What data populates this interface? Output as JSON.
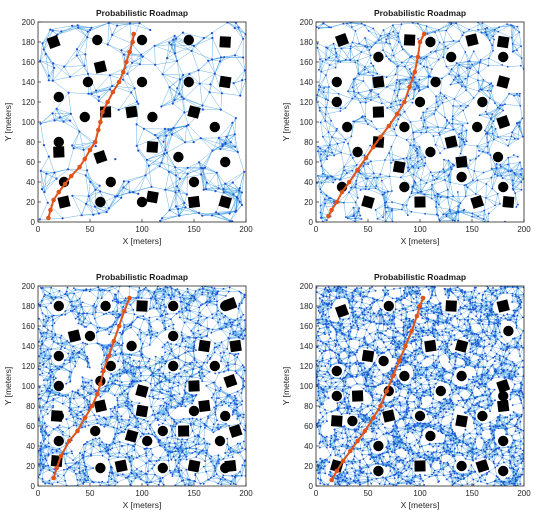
{
  "colors": {
    "background": "#ffffff",
    "free_space": "#ffffff",
    "edge": "#3d9be0",
    "node": "#1f4fd1",
    "path": "#e0541c",
    "obstacle": "#000000",
    "axis": "#262626"
  },
  "chart_data": [
    {
      "type": "scatter",
      "title": "Probabilistic Roadmap",
      "xlabel": "X [meters]",
      "ylabel": "Y [meters]",
      "xlim": [
        0,
        200
      ],
      "ylim": [
        0,
        200
      ],
      "xticks": [
        0,
        50,
        100,
        150,
        200
      ],
      "yticks": [
        0,
        20,
        40,
        60,
        80,
        100,
        120,
        140,
        160,
        180,
        200
      ],
      "grid": false,
      "legend": "none",
      "node_count": 260,
      "path": [
        [
          10,
          4
        ],
        [
          12,
          12
        ],
        [
          15,
          22
        ],
        [
          20,
          30
        ],
        [
          26,
          38
        ],
        [
          32,
          46
        ],
        [
          40,
          55
        ],
        [
          45,
          63
        ],
        [
          50,
          72
        ],
        [
          55,
          80
        ],
        [
          58,
          92
        ],
        [
          60,
          100
        ],
        [
          62,
          110
        ],
        [
          67,
          120
        ],
        [
          72,
          130
        ],
        [
          78,
          140
        ],
        [
          82,
          150
        ],
        [
          85,
          160
        ],
        [
          88,
          170
        ],
        [
          91,
          180
        ],
        [
          92,
          188
        ]
      ],
      "circles": [
        [
          57,
          182
        ],
        [
          100,
          182
        ],
        [
          145,
          182
        ],
        [
          20,
          125
        ],
        [
          48,
          140
        ],
        [
          100,
          140
        ],
        [
          145,
          140
        ],
        [
          45,
          105
        ],
        [
          110,
          105
        ],
        [
          20,
          80
        ],
        [
          170,
          95
        ],
        [
          135,
          65
        ],
        [
          180,
          60
        ],
        [
          25,
          40
        ],
        [
          70,
          40
        ],
        [
          60,
          20
        ],
        [
          100,
          20
        ],
        [
          150,
          40
        ]
      ],
      "squares": [
        [
          15,
          180
        ],
        [
          180,
          180
        ],
        [
          60,
          155
        ],
        [
          180,
          140
        ],
        [
          90,
          110
        ],
        [
          150,
          110
        ],
        [
          20,
          70
        ],
        [
          60,
          65
        ],
        [
          110,
          75
        ],
        [
          25,
          20
        ],
        [
          110,
          25
        ],
        [
          150,
          20
        ],
        [
          180,
          20
        ],
        [
          65,
          110
        ]
      ]
    },
    {
      "type": "scatter",
      "title": "Probabilistic Roadmap",
      "xlabel": "X [meters]",
      "ylabel": "Y [meters]",
      "xlim": [
        0,
        200
      ],
      "ylim": [
        0,
        200
      ],
      "xticks": [
        0,
        50,
        100,
        150,
        200
      ],
      "yticks": [
        0,
        20,
        40,
        60,
        80,
        100,
        120,
        140,
        160,
        180,
        200
      ],
      "grid": false,
      "legend": "none",
      "node_count": 700,
      "path": [
        [
          12,
          6
        ],
        [
          15,
          12
        ],
        [
          20,
          20
        ],
        [
          25,
          30
        ],
        [
          32,
          40
        ],
        [
          40,
          52
        ],
        [
          48,
          64
        ],
        [
          55,
          75
        ],
        [
          62,
          85
        ],
        [
          70,
          96
        ],
        [
          78,
          108
        ],
        [
          85,
          120
        ],
        [
          90,
          135
        ],
        [
          95,
          150
        ],
        [
          98,
          165
        ],
        [
          100,
          180
        ],
        [
          104,
          188
        ]
      ],
      "circles": [
        [
          110,
          180
        ],
        [
          60,
          165
        ],
        [
          130,
          165
        ],
        [
          180,
          165
        ],
        [
          20,
          140
        ],
        [
          115,
          140
        ],
        [
          20,
          120
        ],
        [
          100,
          120
        ],
        [
          160,
          120
        ],
        [
          30,
          95
        ],
        [
          85,
          95
        ],
        [
          155,
          95
        ],
        [
          40,
          70
        ],
        [
          110,
          70
        ],
        [
          175,
          65
        ],
        [
          25,
          35
        ],
        [
          85,
          35
        ],
        [
          140,
          45
        ],
        [
          180,
          35
        ]
      ],
      "squares": [
        [
          25,
          182
        ],
        [
          90,
          182
        ],
        [
          150,
          182
        ],
        [
          180,
          180
        ],
        [
          60,
          140
        ],
        [
          180,
          140
        ],
        [
          60,
          110
        ],
        [
          180,
          100
        ],
        [
          60,
          80
        ],
        [
          130,
          80
        ],
        [
          80,
          55
        ],
        [
          140,
          60
        ],
        [
          50,
          20
        ],
        [
          100,
          20
        ],
        [
          155,
          20
        ],
        [
          185,
          20
        ]
      ]
    },
    {
      "type": "scatter",
      "title": "Probabilistic Roadmap",
      "xlabel": "X [meters]",
      "ylabel": "Y [meters]",
      "xlim": [
        0,
        200
      ],
      "ylim": [
        0,
        200
      ],
      "xticks": [
        0,
        50,
        100,
        150,
        200
      ],
      "yticks": [
        0,
        20,
        40,
        60,
        80,
        100,
        120,
        140,
        160,
        180,
        200
      ],
      "grid": false,
      "legend": "none",
      "node_count": 1500,
      "path": [
        [
          15,
          8
        ],
        [
          18,
          18
        ],
        [
          22,
          30
        ],
        [
          30,
          45
        ],
        [
          38,
          55
        ],
        [
          45,
          68
        ],
        [
          52,
          80
        ],
        [
          57,
          92
        ],
        [
          60,
          102
        ],
        [
          63,
          115
        ],
        [
          68,
          130
        ],
        [
          73,
          145
        ],
        [
          78,
          160
        ],
        [
          83,
          175
        ],
        [
          88,
          188
        ]
      ],
      "circles": [
        [
          20,
          180
        ],
        [
          65,
          180
        ],
        [
          130,
          180
        ],
        [
          180,
          180
        ],
        [
          50,
          150
        ],
        [
          130,
          150
        ],
        [
          90,
          140
        ],
        [
          20,
          130
        ],
        [
          70,
          120
        ],
        [
          130,
          120
        ],
        [
          170,
          120
        ],
        [
          60,
          105
        ],
        [
          20,
          100
        ],
        [
          150,
          75
        ],
        [
          55,
          55
        ],
        [
          120,
          55
        ],
        [
          20,
          70
        ],
        [
          180,
          70
        ],
        [
          20,
          45
        ],
        [
          105,
          45
        ],
        [
          175,
          45
        ],
        [
          60,
          18
        ],
        [
          120,
          18
        ],
        [
          180,
          18
        ]
      ],
      "squares": [
        [
          185,
          182
        ],
        [
          100,
          180
        ],
        [
          35,
          150
        ],
        [
          160,
          140
        ],
        [
          190,
          140
        ],
        [
          100,
          95
        ],
        [
          150,
          100
        ],
        [
          185,
          105
        ],
        [
          18,
          70
        ],
        [
          60,
          80
        ],
        [
          100,
          75
        ],
        [
          160,
          80
        ],
        [
          90,
          50
        ],
        [
          140,
          55
        ],
        [
          190,
          55
        ],
        [
          18,
          25
        ],
        [
          80,
          20
        ],
        [
          150,
          20
        ],
        [
          185,
          20
        ]
      ]
    },
    {
      "type": "scatter",
      "title": "Probabilistic Roadmap",
      "xlabel": "X [meters]",
      "ylabel": "Y [meters]",
      "xlim": [
        0,
        200
      ],
      "ylim": [
        0,
        200
      ],
      "xticks": [
        0,
        50,
        100,
        150,
        200
      ],
      "yticks": [
        0,
        20,
        40,
        60,
        80,
        100,
        120,
        140,
        160,
        180,
        200
      ],
      "grid": false,
      "legend": "none",
      "node_count": 2500,
      "path": [
        [
          15,
          6
        ],
        [
          20,
          15
        ],
        [
          26,
          25
        ],
        [
          33,
          35
        ],
        [
          40,
          45
        ],
        [
          47,
          55
        ],
        [
          55,
          68
        ],
        [
          62,
          80
        ],
        [
          68,
          95
        ],
        [
          74,
          110
        ],
        [
          80,
          125
        ],
        [
          86,
          140
        ],
        [
          92,
          155
        ],
        [
          97,
          170
        ],
        [
          100,
          180
        ],
        [
          103,
          188
        ]
      ],
      "circles": [
        [
          70,
          180
        ],
        [
          185,
          155
        ],
        [
          20,
          115
        ],
        [
          65,
          125
        ],
        [
          85,
          110
        ],
        [
          140,
          110
        ],
        [
          70,
          95
        ],
        [
          20,
          90
        ],
        [
          120,
          95
        ],
        [
          180,
          90
        ],
        [
          35,
          65
        ],
        [
          100,
          70
        ],
        [
          160,
          70
        ],
        [
          60,
          40
        ],
        [
          110,
          50
        ],
        [
          180,
          45
        ],
        [
          60,
          15
        ],
        [
          140,
          20
        ],
        [
          180,
          15
        ]
      ],
      "squares": [
        [
          25,
          175
        ],
        [
          130,
          180
        ],
        [
          180,
          180
        ],
        [
          50,
          130
        ],
        [
          110,
          140
        ],
        [
          140,
          140
        ],
        [
          40,
          90
        ],
        [
          180,
          100
        ],
        [
          20,
          65
        ],
        [
          70,
          70
        ],
        [
          140,
          65
        ],
        [
          180,
          80
        ],
        [
          20,
          20
        ],
        [
          100,
          20
        ],
        [
          160,
          20
        ]
      ]
    }
  ]
}
